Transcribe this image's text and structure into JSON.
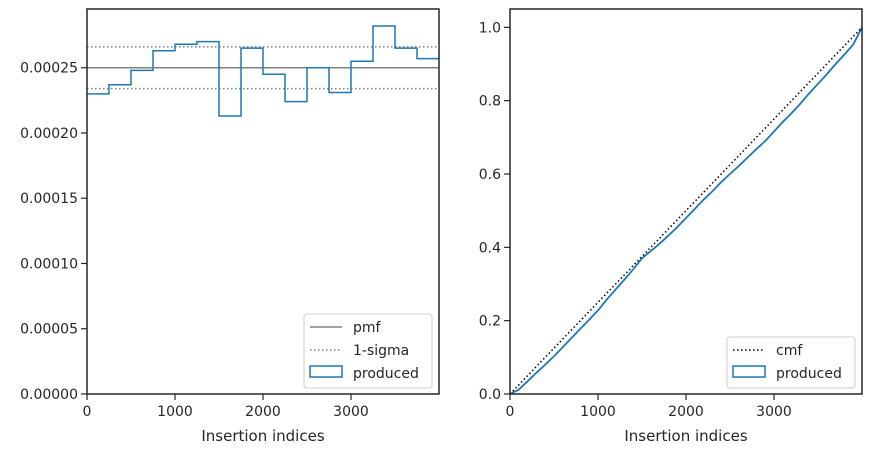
{
  "chart_data": [
    {
      "type": "line",
      "xlabel": "Insertion indices",
      "ylabel": "",
      "xlim": [
        0,
        4000
      ],
      "ylim": [
        0,
        0.000295
      ],
      "xticks": [
        0,
        1000,
        2000,
        3000
      ],
      "xtick_labels": [
        "0",
        "1000",
        "2000",
        "3000"
      ],
      "yticks": [
        0,
        5e-05,
        0.0001,
        0.00015,
        0.0002,
        0.00025
      ],
      "ytick_labels": [
        "0.00000",
        "0.00005",
        "0.00010",
        "0.00015",
        "0.00020",
        "0.00025"
      ],
      "grid": false,
      "legend_position": "lower-right",
      "pmf": 0.00025,
      "sigma_band": [
        0.000234,
        0.000266
      ],
      "bin_edges": [
        0,
        250,
        500,
        750,
        1000,
        1250,
        1500,
        1750,
        2000,
        2250,
        2500,
        2750,
        3000,
        3250,
        3500,
        3750,
        4000
      ],
      "produced": [
        0.00023,
        0.000237,
        0.000248,
        0.000263,
        0.000268,
        0.00027,
        0.000213,
        0.000265,
        0.000245,
        0.000224,
        0.00025,
        0.000231,
        0.000255,
        0.000282,
        0.000265,
        0.000257
      ],
      "legend": [
        {
          "label": "pmf",
          "style": "solid",
          "color": "#808080"
        },
        {
          "label": "1-sigma",
          "style": "dotted",
          "color": "#808080"
        },
        {
          "label": "produced",
          "style": "box",
          "color": "#1f77b4"
        }
      ]
    },
    {
      "type": "line",
      "xlabel": "Insertion indices",
      "ylabel": "",
      "xlim": [
        0,
        4000
      ],
      "ylim": [
        0,
        1.05
      ],
      "xticks": [
        0,
        1000,
        2000,
        3000
      ],
      "xtick_labels": [
        "0",
        "1000",
        "2000",
        "3000"
      ],
      "yticks": [
        0,
        0.2,
        0.4,
        0.6,
        0.8,
        1.0
      ],
      "ytick_labels": [
        "0.0",
        "0.2",
        "0.4",
        "0.6",
        "0.8",
        "1.0"
      ],
      "grid": false,
      "legend_position": "lower-right",
      "cmf": {
        "x": [
          0,
          4000
        ],
        "y": [
          0,
          1.0
        ]
      },
      "produced": {
        "x": [
          0,
          100,
          200,
          300,
          400,
          500,
          600,
          700,
          800,
          900,
          1000,
          1100,
          1200,
          1300,
          1400,
          1500,
          1600,
          1700,
          1800,
          1900,
          2000,
          2100,
          2200,
          2300,
          2400,
          2500,
          2600,
          2700,
          2800,
          2900,
          3000,
          3100,
          3200,
          3300,
          3400,
          3500,
          3600,
          3700,
          3800,
          3900,
          4000
        ],
        "y": [
          0,
          0.012,
          0.035,
          0.058,
          0.08,
          0.103,
          0.128,
          0.153,
          0.178,
          0.203,
          0.228,
          0.258,
          0.285,
          0.312,
          0.34,
          0.37,
          0.39,
          0.41,
          0.432,
          0.455,
          0.48,
          0.505,
          0.53,
          0.553,
          0.578,
          0.6,
          0.622,
          0.645,
          0.668,
          0.69,
          0.716,
          0.742,
          0.766,
          0.792,
          0.82,
          0.846,
          0.872,
          0.9,
          0.926,
          0.953,
          1.0
        ]
      },
      "legend": [
        {
          "label": "cmf",
          "style": "dotted",
          "color": "#000000"
        },
        {
          "label": "produced",
          "style": "box",
          "color": "#1f77b4"
        }
      ]
    }
  ]
}
